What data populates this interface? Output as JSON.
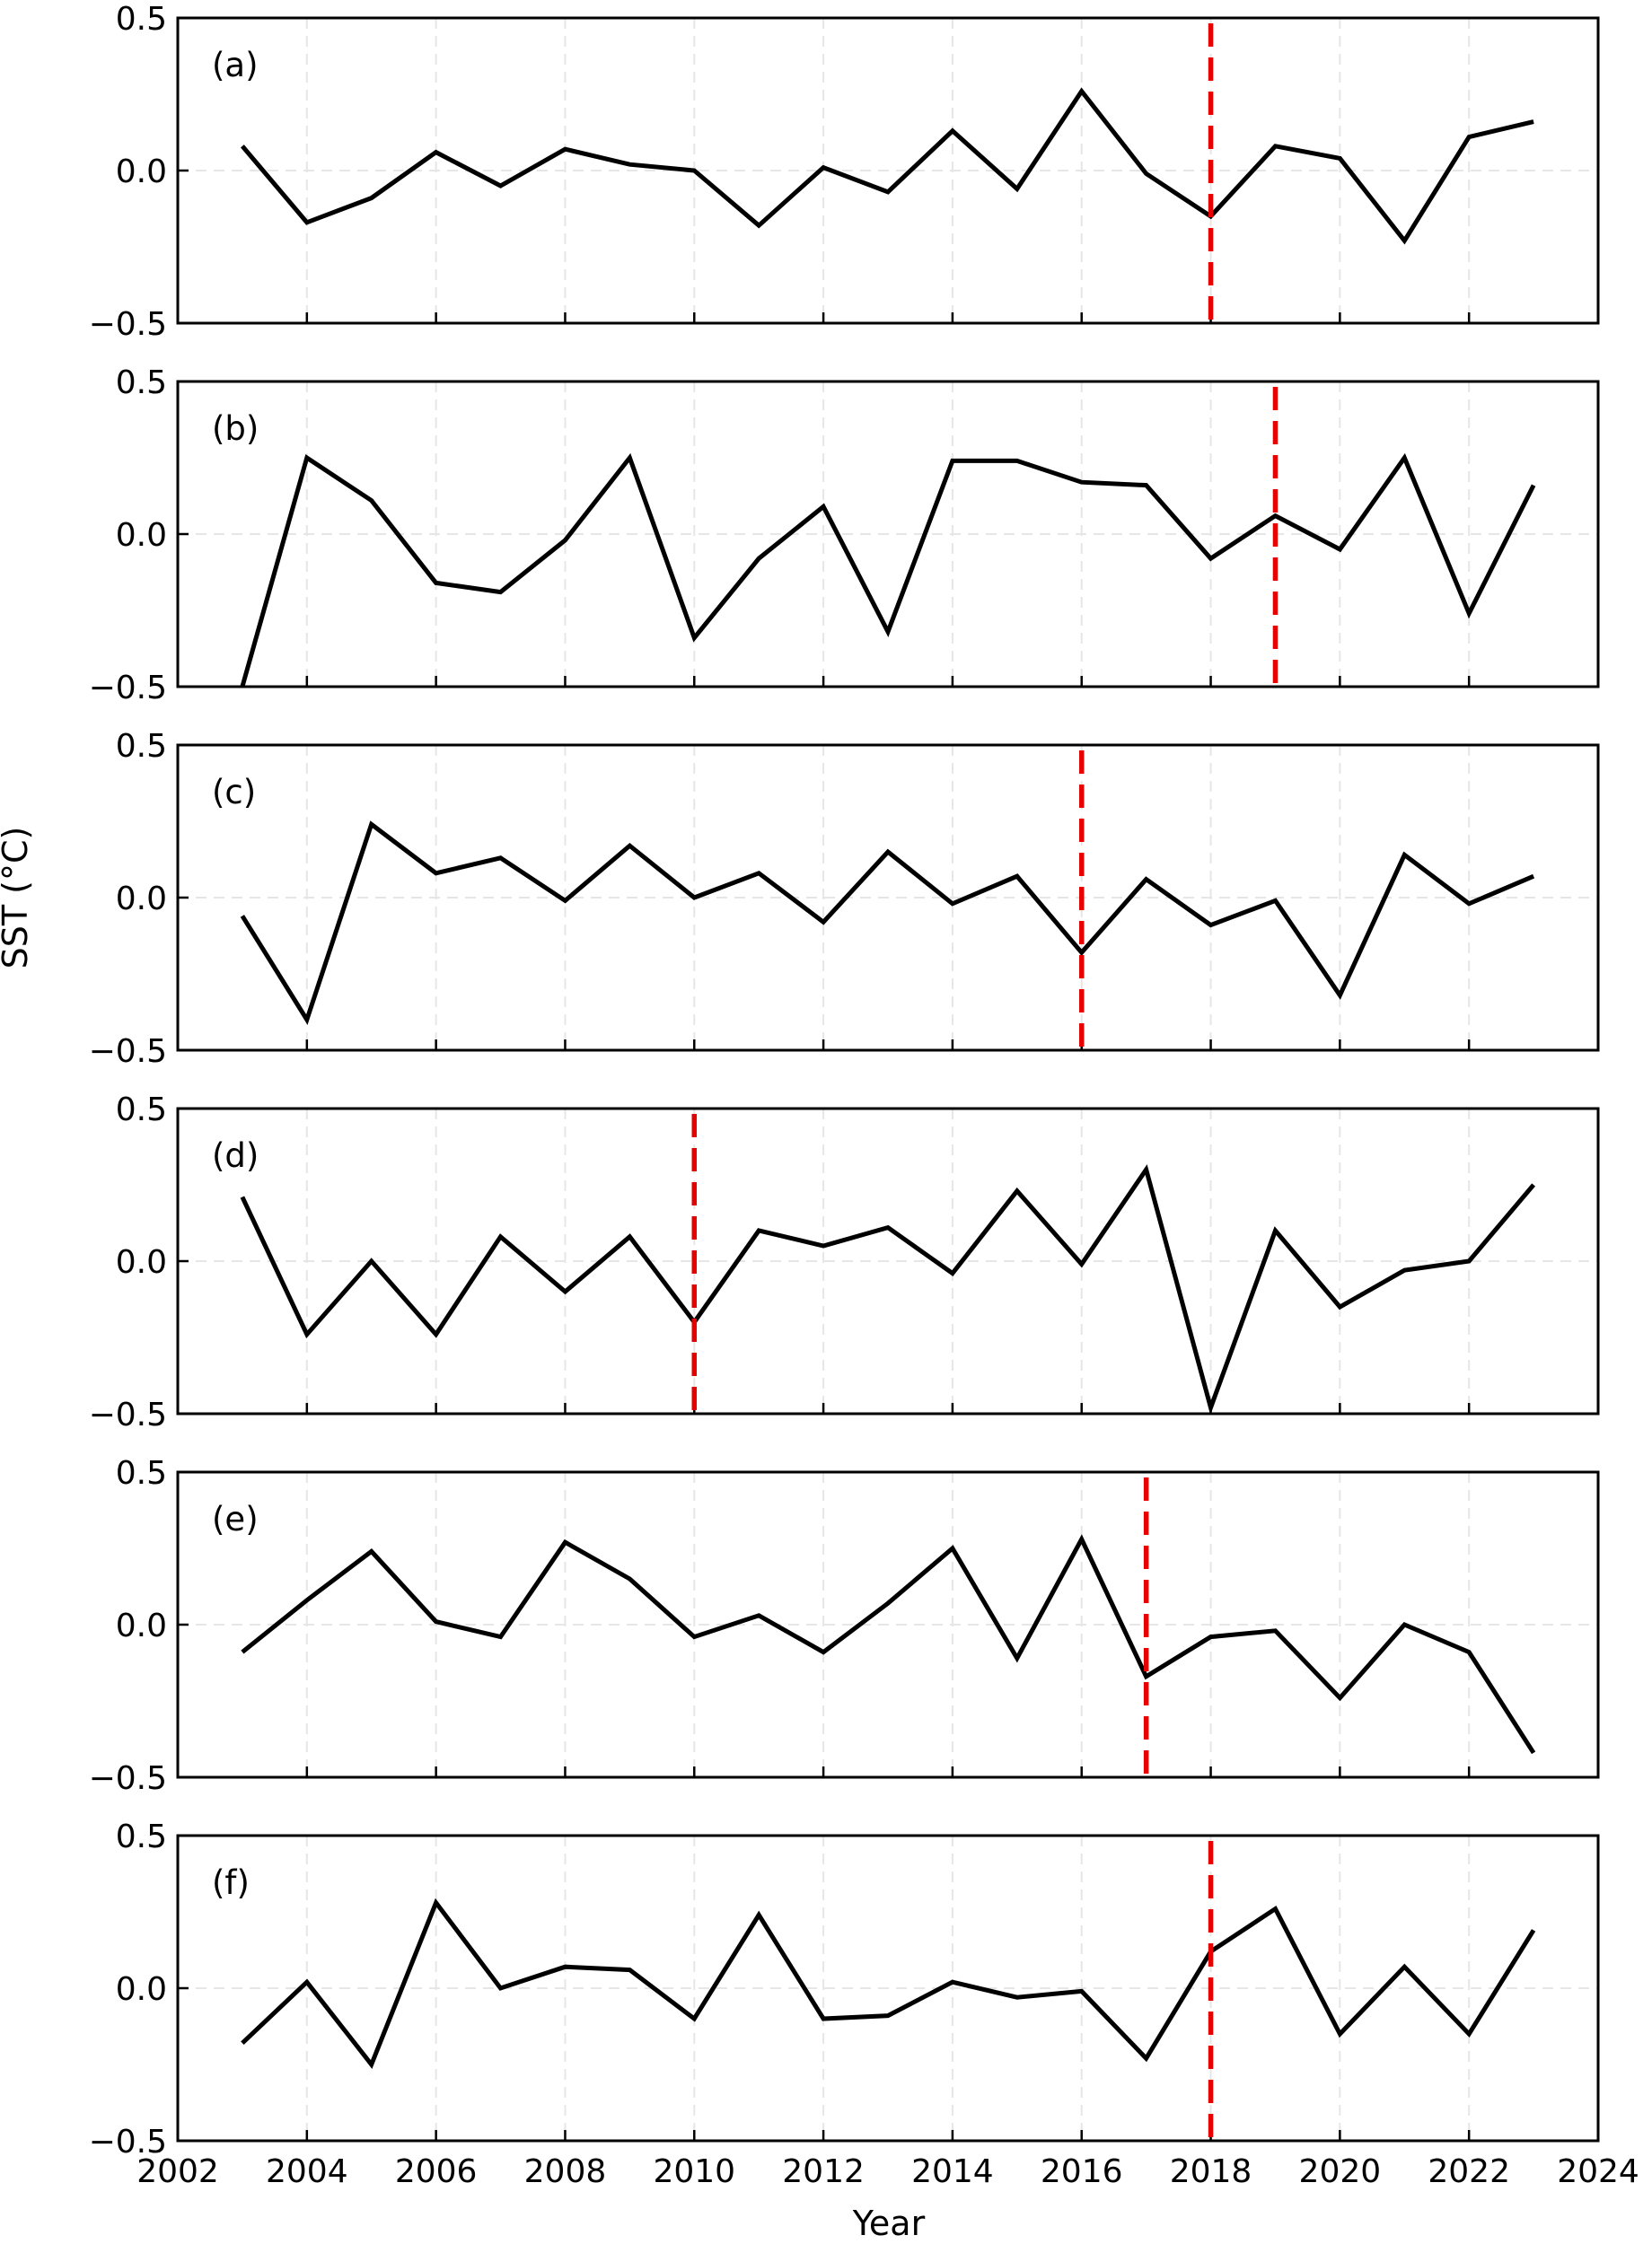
{
  "figure": {
    "ylabel": "SST (°C)",
    "xlabel": "Year"
  },
  "colors": {
    "line": "#000000",
    "break_line": "#e60000",
    "grid": "#e6e6e6"
  },
  "chart_data": [
    {
      "type": "line",
      "panel_label": "(a)",
      "x": [
        2003,
        2004,
        2005,
        2006,
        2007,
        2008,
        2009,
        2010,
        2011,
        2012,
        2013,
        2014,
        2015,
        2016,
        2017,
        2018,
        2019,
        2020,
        2021,
        2022,
        2023
      ],
      "series": [
        {
          "values": [
            0.08,
            -0.17,
            -0.09,
            0.06,
            -0.05,
            0.07,
            0.02,
            0.0,
            -0.18,
            0.01,
            -0.07,
            0.13,
            -0.06,
            0.26,
            -0.01,
            -0.15,
            0.08,
            0.04,
            -0.23,
            0.11,
            0.16
          ]
        }
      ],
      "vline_x": 2018,
      "xlim": [
        2002,
        2024
      ],
      "ylim": [
        -0.5,
        0.5
      ],
      "yticks": [
        "0.5",
        "0.0",
        "−0.5"
      ],
      "grid": true
    },
    {
      "type": "line",
      "panel_label": "(b)",
      "x": [
        2003,
        2004,
        2005,
        2006,
        2007,
        2008,
        2009,
        2010,
        2011,
        2012,
        2013,
        2014,
        2015,
        2016,
        2017,
        2018,
        2019,
        2020,
        2021,
        2022,
        2023
      ],
      "series": [
        {
          "values": [
            -0.5,
            0.25,
            0.11,
            -0.16,
            -0.19,
            -0.02,
            0.25,
            -0.34,
            -0.08,
            0.09,
            -0.32,
            0.24,
            0.24,
            0.17,
            0.16,
            -0.08,
            0.06,
            -0.05,
            0.25,
            -0.26,
            0.16
          ]
        }
      ],
      "vline_x": 2019,
      "xlim": [
        2002,
        2024
      ],
      "ylim": [
        -0.5,
        0.5
      ],
      "yticks": [
        "0.5",
        "0.0",
        "−0.5"
      ],
      "grid": true
    },
    {
      "type": "line",
      "panel_label": "(c)",
      "x": [
        2003,
        2004,
        2005,
        2006,
        2007,
        2008,
        2009,
        2010,
        2011,
        2012,
        2013,
        2014,
        2015,
        2016,
        2017,
        2018,
        2019,
        2020,
        2021,
        2022,
        2023
      ],
      "series": [
        {
          "values": [
            -0.06,
            -0.4,
            0.24,
            0.08,
            0.13,
            -0.01,
            0.17,
            0.0,
            0.08,
            -0.08,
            0.15,
            -0.02,
            0.07,
            -0.18,
            0.06,
            -0.09,
            -0.01,
            -0.32,
            0.14,
            -0.02,
            0.07
          ]
        }
      ],
      "vline_x": 2016,
      "xlim": [
        2002,
        2024
      ],
      "ylim": [
        -0.5,
        0.5
      ],
      "yticks": [
        "0.5",
        "0.0",
        "−0.5"
      ],
      "grid": true
    },
    {
      "type": "line",
      "panel_label": "(d)",
      "x": [
        2003,
        2004,
        2005,
        2006,
        2007,
        2008,
        2009,
        2010,
        2011,
        2012,
        2013,
        2014,
        2015,
        2016,
        2017,
        2018,
        2019,
        2020,
        2021,
        2022,
        2023
      ],
      "series": [
        {
          "values": [
            0.21,
            -0.24,
            0.0,
            -0.24,
            0.08,
            -0.1,
            0.08,
            -0.2,
            0.1,
            0.05,
            0.11,
            -0.04,
            0.23,
            -0.01,
            0.3,
            -0.48,
            0.1,
            -0.15,
            -0.03,
            0.0,
            0.25
          ]
        }
      ],
      "vline_x": 2010,
      "xlim": [
        2002,
        2024
      ],
      "ylim": [
        -0.5,
        0.5
      ],
      "yticks": [
        "0.5",
        "0.0",
        "−0.5"
      ],
      "grid": true
    },
    {
      "type": "line",
      "panel_label": "(e)",
      "x": [
        2003,
        2004,
        2005,
        2006,
        2007,
        2008,
        2009,
        2010,
        2011,
        2012,
        2013,
        2014,
        2015,
        2016,
        2017,
        2018,
        2019,
        2020,
        2021,
        2022,
        2023
      ],
      "series": [
        {
          "values": [
            -0.09,
            0.08,
            0.24,
            0.01,
            -0.04,
            0.27,
            0.15,
            -0.04,
            0.03,
            -0.09,
            0.07,
            0.25,
            -0.11,
            0.28,
            -0.17,
            -0.04,
            -0.02,
            -0.24,
            0.0,
            -0.09,
            -0.42
          ]
        }
      ],
      "vline_x": 2017,
      "xlim": [
        2002,
        2024
      ],
      "ylim": [
        -0.5,
        0.5
      ],
      "yticks": [
        "0.5",
        "0.0",
        "−0.5"
      ],
      "grid": true
    },
    {
      "type": "line",
      "panel_label": "(f)",
      "x": [
        2003,
        2004,
        2005,
        2006,
        2007,
        2008,
        2009,
        2010,
        2011,
        2012,
        2013,
        2014,
        2015,
        2016,
        2017,
        2018,
        2019,
        2020,
        2021,
        2022,
        2023
      ],
      "series": [
        {
          "values": [
            -0.18,
            0.02,
            -0.25,
            0.28,
            0.0,
            0.07,
            0.06,
            -0.1,
            0.24,
            -0.1,
            -0.09,
            0.02,
            -0.03,
            -0.01,
            -0.23,
            0.12,
            0.26,
            -0.15,
            0.07,
            -0.15,
            0.19
          ]
        }
      ],
      "vline_x": 2018,
      "xlim": [
        2002,
        2024
      ],
      "ylim": [
        -0.5,
        0.5
      ],
      "yticks": [
        "0.5",
        "0.0",
        "−0.5"
      ],
      "xticks": [
        "2002",
        "2004",
        "2006",
        "2008",
        "2010",
        "2012",
        "2014",
        "2016",
        "2018",
        "2020",
        "2022",
        "2024"
      ],
      "grid": true
    }
  ]
}
